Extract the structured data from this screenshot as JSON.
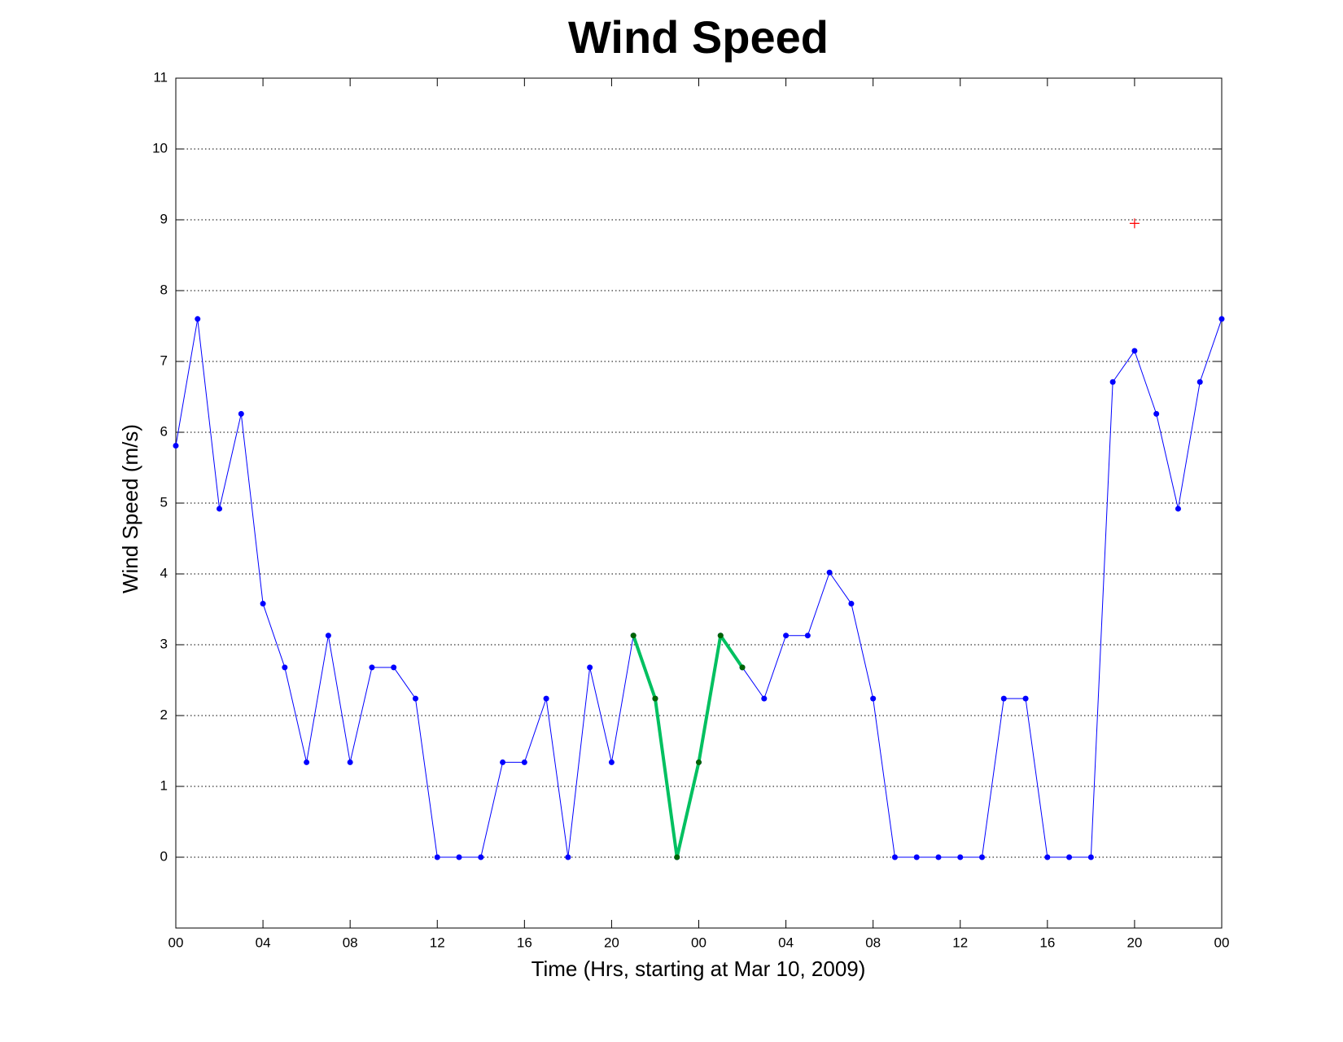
{
  "chart_data": {
    "type": "line",
    "title": "Wind Speed",
    "x_label": "Time (Hrs, starting at Mar 10, 2009)",
    "y_label": "Wind Speed (m/s)",
    "x": [
      0,
      1,
      2,
      3,
      4,
      5,
      6,
      7,
      8,
      9,
      10,
      11,
      12,
      13,
      14,
      15,
      16,
      17,
      18,
      19,
      20,
      21,
      22,
      23,
      24,
      25,
      26,
      27,
      28,
      29,
      30,
      31,
      32,
      33,
      34,
      35,
      36,
      37,
      38,
      39,
      40,
      41,
      42,
      43,
      44,
      45,
      46,
      47,
      48
    ],
    "series": [
      {
        "color": "#0000ff",
        "marker_color": "#0000ff",
        "line_width": 1,
        "values": [
          5.81,
          7.6,
          4.92,
          6.26,
          3.58,
          2.68,
          1.34,
          3.13,
          1.34,
          2.68,
          2.68,
          2.24,
          0,
          0,
          0,
          1.34,
          1.34,
          2.24,
          0,
          2.68,
          1.34,
          3.13,
          2.24,
          0,
          1.34,
          3.13,
          2.68,
          2.24,
          3.13,
          3.13,
          4.02,
          3.58,
          2.24,
          0,
          0,
          0,
          0,
          0,
          2.24,
          2.24,
          0,
          0,
          0,
          6.71,
          7.15,
          6.26,
          4.92,
          6.71,
          7.6
        ]
      },
      {
        "color": "#00c060",
        "marker_color": "#006400",
        "line_width": 4,
        "values": [
          null,
          null,
          null,
          null,
          null,
          null,
          null,
          null,
          null,
          null,
          null,
          null,
          null,
          null,
          null,
          null,
          null,
          null,
          null,
          null,
          null,
          3.13,
          2.24,
          0,
          1.34,
          3.13,
          2.68,
          null,
          null,
          null,
          null,
          null,
          null,
          null,
          null,
          null,
          null,
          null,
          null,
          null,
          null,
          null,
          null,
          null,
          null,
          null,
          null,
          null,
          null
        ]
      }
    ],
    "marker_points": [
      {
        "x": 44,
        "y": 8.95,
        "color": "#ff0000"
      }
    ],
    "xlim": [
      0,
      48
    ],
    "xticks": [
      {
        "value": 0,
        "label": "00"
      },
      {
        "value": 4,
        "label": "04"
      },
      {
        "value": 8,
        "label": "08"
      },
      12,
      16,
      20,
      {
        "value": 24,
        "label": "00"
      },
      {
        "value": 28,
        "label": "04"
      },
      {
        "value": 32,
        "label": "08"
      },
      {
        "value": 36,
        "label": "12"
      },
      {
        "value": 40,
        "label": "16"
      },
      {
        "value": 44,
        "label": "20"
      },
      {
        "value": 48,
        "label": "00"
      }
    ],
    "ylim": [
      -1,
      11
    ],
    "yticks": [
      0,
      1,
      2,
      3,
      4,
      5,
      6,
      7,
      8,
      9,
      10,
      11
    ],
    "grid": true
  }
}
